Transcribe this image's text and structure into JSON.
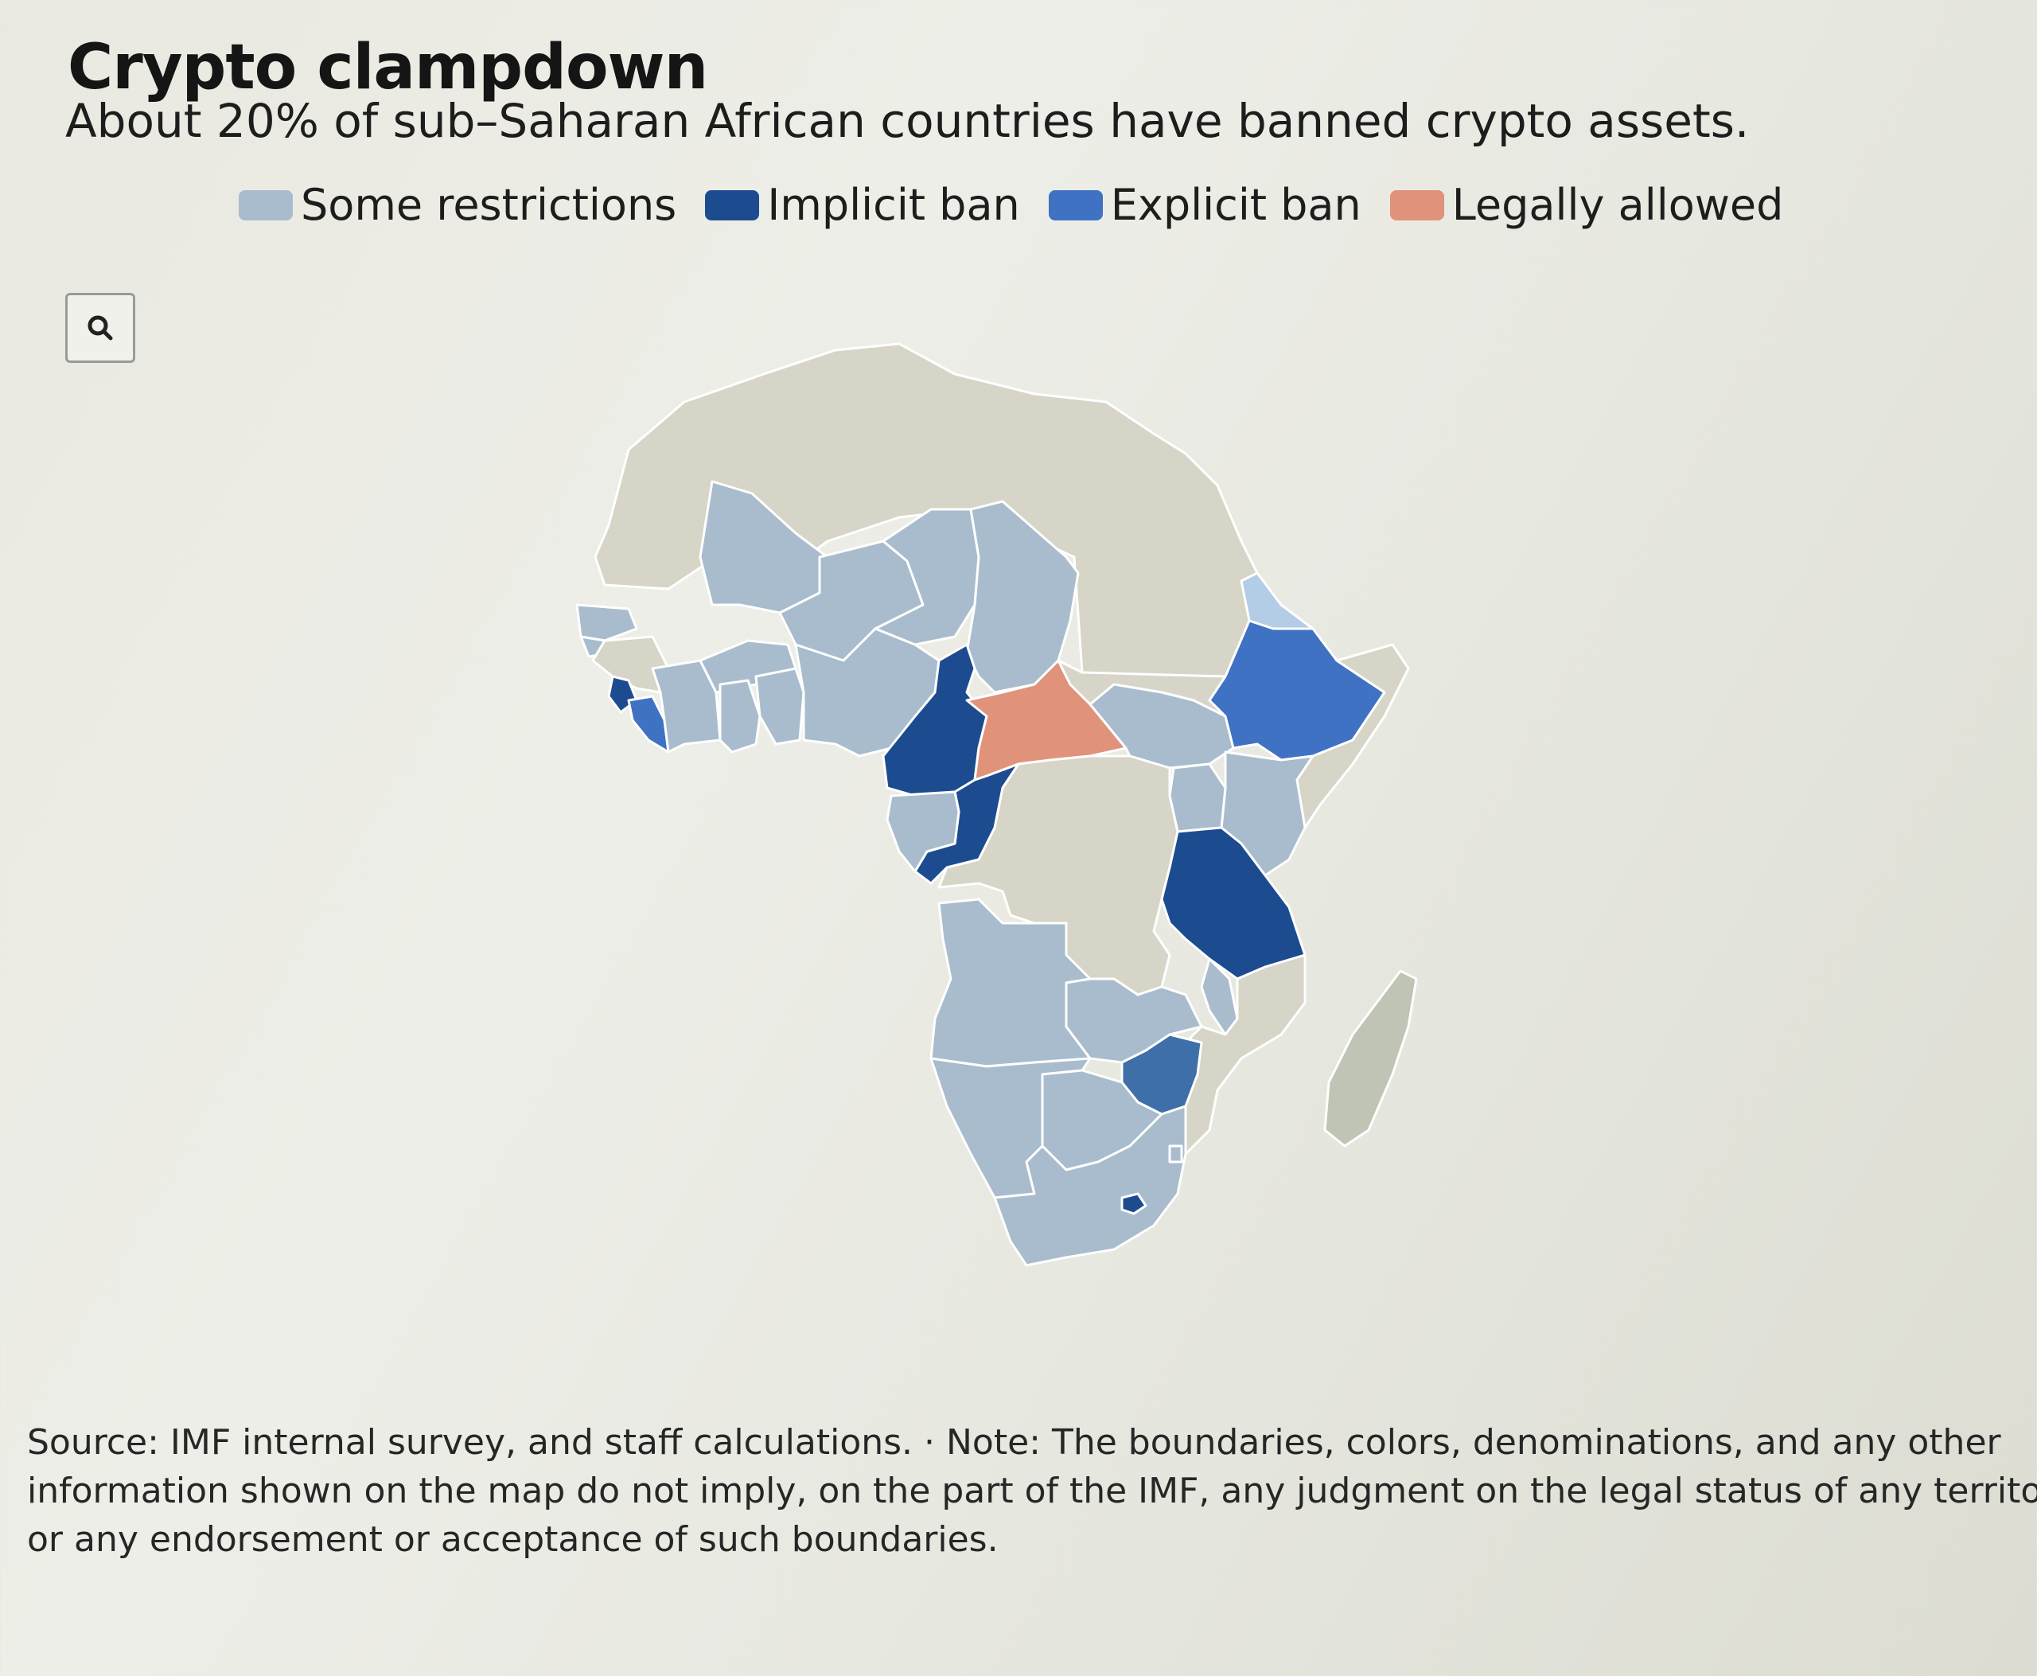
{
  "header": {
    "title": "Crypto clampdown",
    "subtitle": "About 20% of sub–Saharan African countries have banned crypto assets."
  },
  "legend": [
    {
      "label": "Some restrictions",
      "color": "#a9bccd"
    },
    {
      "label": "Implicit ban",
      "color": "#1c4c8f"
    },
    {
      "label": "Explicit ban",
      "color": "#3f72c2"
    },
    {
      "label": "Legally allowed",
      "color": "#e0927a"
    }
  ],
  "map": {
    "colors": {
      "not_covered": "#d6d5c7",
      "some_restrictions": "#a9bccd",
      "implicit_ban": "#1c4c8f",
      "explicit_ban": "#3f72c2",
      "legally_allowed": "#e0927a"
    },
    "search_icon": "search-icon"
  },
  "footer": {
    "source_lines": [
      "Source: IMF internal survey, and staff calculations. · Note: The boundaries, colors, denominations, and any other",
      "information shown on the map do not imply, on the part of the IMF, any judgment on the legal status of any territory",
      "or any endorsement or acceptance of such boundaries."
    ]
  }
}
